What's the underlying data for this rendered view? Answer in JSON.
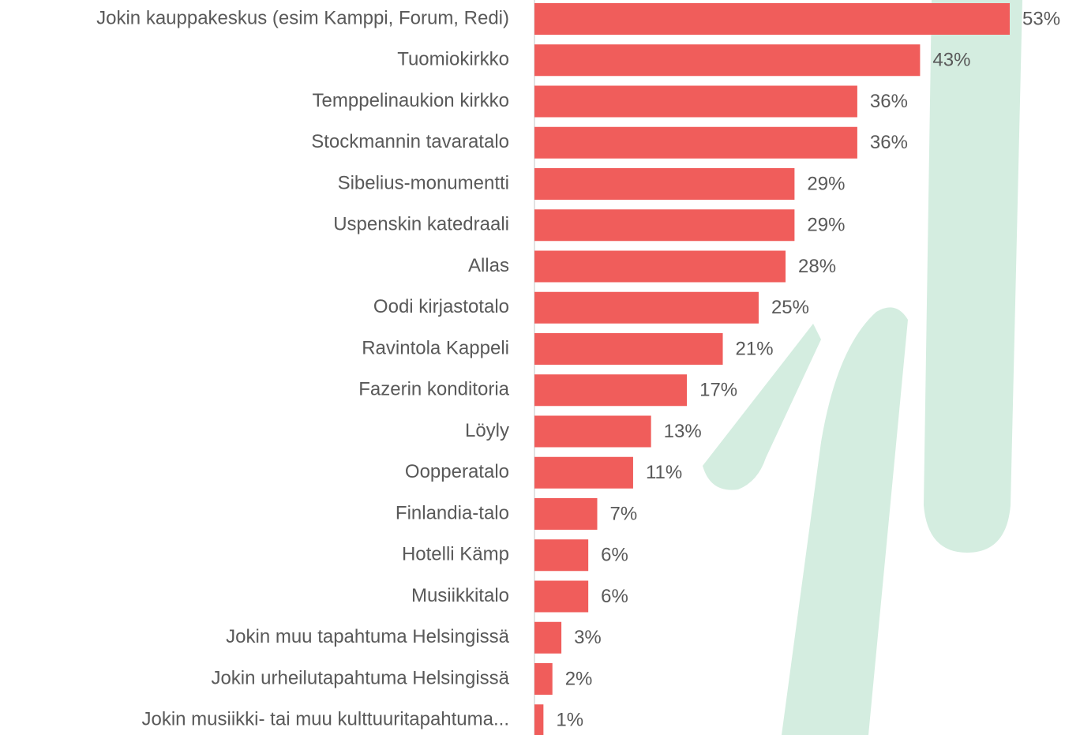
{
  "chart_data": {
    "type": "bar",
    "orientation": "horizontal",
    "categories": [
      "Jokin kauppakeskus (esim  Kamppi, Forum, Redi)",
      "Tuomiokirkko",
      "Temppelinaukion kirkko",
      "Stockmannin tavaratalo",
      "Sibelius-monumentti",
      "Uspenskin katedraali",
      "Allas",
      "Oodi kirjastotalo",
      "Ravintola Kappeli",
      "Fazerin konditoria",
      "Löyly",
      "Oopperatalo",
      "Finlandia-talo",
      "Hotelli Kämp",
      "Musiikkitalo",
      "Jokin muu tapahtuma Helsingissä",
      "Jokin urheilutapahtuma Helsingissä",
      "Jokin musiikki- tai muu kulttuuritapahtuma..."
    ],
    "values": [
      53,
      43,
      36,
      36,
      29,
      29,
      28,
      25,
      21,
      17,
      13,
      11,
      7,
      6,
      6,
      3,
      2,
      1
    ],
    "value_labels": [
      "53%",
      "43%",
      "36%",
      "36%",
      "29%",
      "29%",
      "28%",
      "25%",
      "21%",
      "17%",
      "13%",
      "11%",
      "7%",
      "6%",
      "6%",
      "3%",
      "2%",
      "1%"
    ],
    "color": "#f05d5b"
  }
}
